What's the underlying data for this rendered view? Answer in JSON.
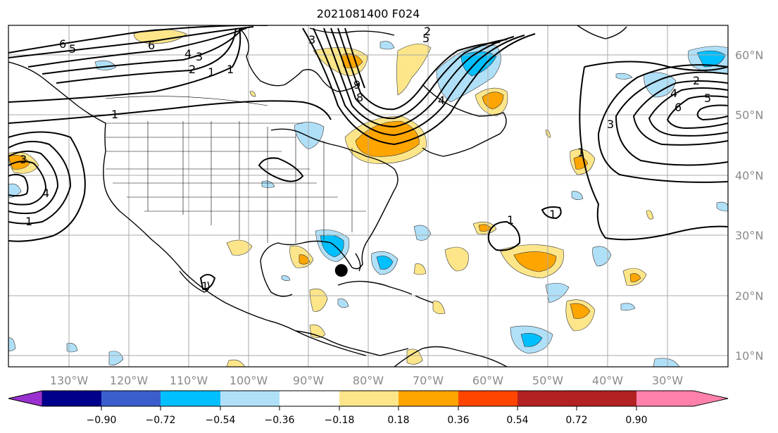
{
  "title": "2021081400 F024",
  "lon_labels": [
    "130°W",
    "120°W",
    "110°W",
    "100°W",
    "90°W",
    "80°W",
    "70°W",
    "60°W",
    "50°W",
    "40°W",
    "30°W"
  ],
  "lat_labels": [
    "60°N",
    "50°N",
    "40°N",
    "30°N",
    "20°N",
    "10°N"
  ],
  "colorbar": {
    "tick_labels": [
      "−0.90",
      "−0.72",
      "−0.54",
      "−0.36",
      "−0.18",
      "0.18",
      "0.36",
      "0.54",
      "0.72",
      "0.90"
    ],
    "colors": [
      "#9b30d0",
      "#00008b",
      "#3a5fcd",
      "#00bfff",
      "#b0e0f8",
      "#ffffff",
      "#fde68a",
      "#ffa500",
      "#ff4500",
      "#b22222",
      "#ff80ab"
    ]
  },
  "contour_labels": [
    "6",
    "5",
    "6",
    "4",
    "3",
    "2",
    "1",
    "1",
    "1",
    "3",
    "2",
    "5",
    "4",
    "3",
    "9",
    "8",
    "4",
    "2",
    "5",
    "4",
    "6",
    "3",
    "1",
    "1",
    "1",
    "1",
    "1"
  ],
  "marker": {
    "name": "storm-position",
    "lon": -84.5,
    "lat": 24.2
  }
}
